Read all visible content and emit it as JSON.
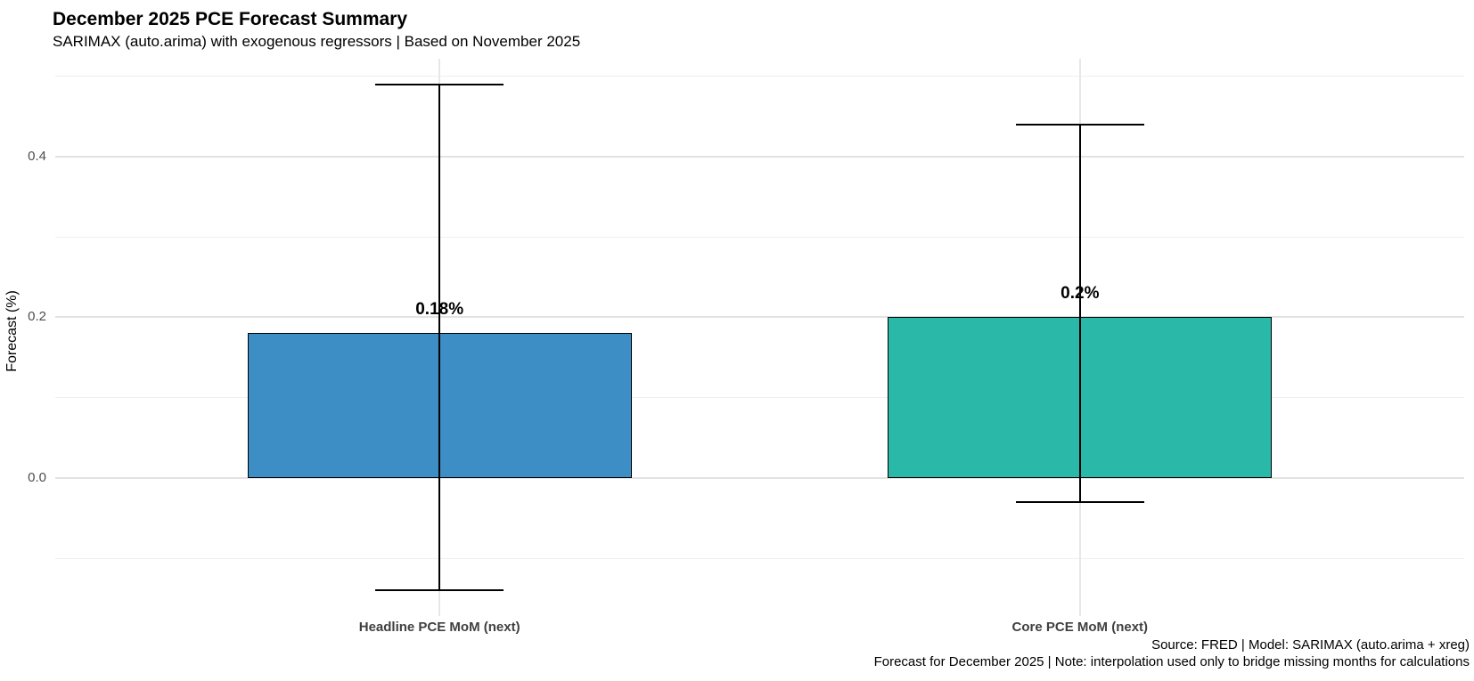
{
  "header": {
    "title": "December 2025 PCE Forecast Summary",
    "subtitle": "SARIMAX (auto.arima) with exogenous regressors | Based on November 2025"
  },
  "chart_data": {
    "type": "bar",
    "title": "December 2025 PCE Forecast Summary",
    "subtitle": "SARIMAX (auto.arima) with exogenous regressors | Based on November 2025",
    "categories": [
      "Headline PCE MoM (next)",
      "Core PCE MoM (next)"
    ],
    "values": [
      0.18,
      0.2
    ],
    "value_labels": [
      "0.18%",
      "0.2%"
    ],
    "error_low": [
      -0.14,
      -0.03
    ],
    "error_high": [
      0.49,
      0.44
    ],
    "bar_colors": [
      "#3E8EC6",
      "#2AB8A8"
    ],
    "bar_border_color": "#000000",
    "xlabel": "",
    "ylabel": "Forecast (%)",
    "yticks_major": [
      0.0,
      0.2,
      0.4
    ],
    "ytick_labels": [
      "0.0",
      "0.2",
      "0.4"
    ],
    "yticks_minor": [
      -0.1,
      0.1,
      0.3,
      0.5
    ],
    "ylim": [
      -0.172,
      0.522
    ],
    "grid": "on",
    "legend": "none"
  },
  "caption": {
    "line1": "Source: FRED | Model: SARIMAX (auto.arima + xreg)",
    "line2": "Forecast for December 2025 | Note: interpolation used only to bridge missing months for calculations"
  }
}
